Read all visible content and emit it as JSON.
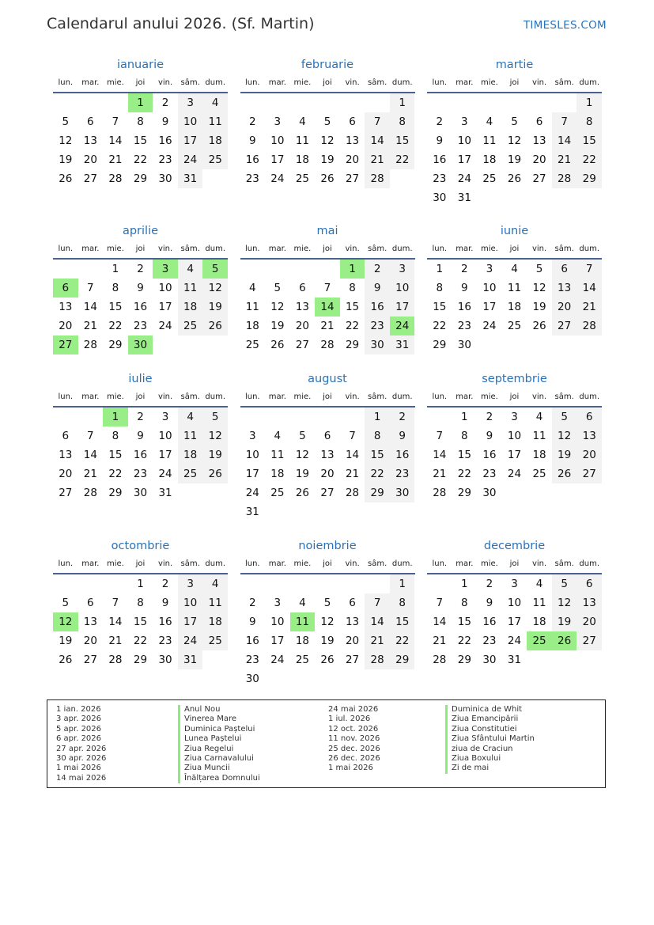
{
  "header": {
    "title": "Calendarul anului 2026. (Sf. Martin)",
    "brand": "TIMESLES.COM"
  },
  "colors": {
    "accent": "#2a72b8",
    "holiday": "#99ee88",
    "weekend": "#f2f2f2",
    "rule": "#4a6290"
  },
  "year": 2026,
  "weekdays": [
    "lun.",
    "mar.",
    "mie.",
    "joi",
    "vin.",
    "sâm.",
    "dum."
  ],
  "months": [
    {
      "name": "ianuarie",
      "holidays": [
        1
      ]
    },
    {
      "name": "februarie",
      "holidays": []
    },
    {
      "name": "martie",
      "holidays": []
    },
    {
      "name": "aprilie",
      "holidays": [
        3,
        5,
        6,
        27,
        30
      ]
    },
    {
      "name": "mai",
      "holidays": [
        1,
        14,
        24
      ]
    },
    {
      "name": "iunie",
      "holidays": []
    },
    {
      "name": "iulie",
      "holidays": [
        1
      ]
    },
    {
      "name": "august",
      "holidays": []
    },
    {
      "name": "septembrie",
      "holidays": []
    },
    {
      "name": "octombrie",
      "holidays": [
        12
      ]
    },
    {
      "name": "noiembrie",
      "holidays": [
        11
      ]
    },
    {
      "name": "decembrie",
      "holidays": [
        25,
        26
      ]
    }
  ],
  "legend": {
    "left": [
      {
        "date": "1 ian. 2026",
        "name": "Anul Nou"
      },
      {
        "date": "3 apr. 2026",
        "name": "Vinerea Mare"
      },
      {
        "date": "5 apr. 2026",
        "name": "Duminica Paștelui"
      },
      {
        "date": "6 apr. 2026",
        "name": "Lunea Paștelui"
      },
      {
        "date": "27 apr. 2026",
        "name": "Ziua Regelui"
      },
      {
        "date": "30 apr. 2026",
        "name": "Ziua Carnavalului"
      },
      {
        "date": "1 mai 2026",
        "name": "Ziua Muncii"
      },
      {
        "date": "14 mai 2026",
        "name": "Înălțarea Domnului"
      }
    ],
    "right": [
      {
        "date": "24 mai 2026",
        "name": "Duminica de Whit"
      },
      {
        "date": "1 iul. 2026",
        "name": "Ziua Emancipării"
      },
      {
        "date": "12 oct. 2026",
        "name": "Ziua Constitutiei"
      },
      {
        "date": "11 nov. 2026",
        "name": "Ziua Sfântului Martin"
      },
      {
        "date": "25 dec. 2026",
        "name": "ziua de Craciun"
      },
      {
        "date": "26 dec. 2026",
        "name": "Ziua Boxului"
      },
      {
        "date": "1 mai 2026",
        "name": "Zi de mai"
      }
    ]
  }
}
